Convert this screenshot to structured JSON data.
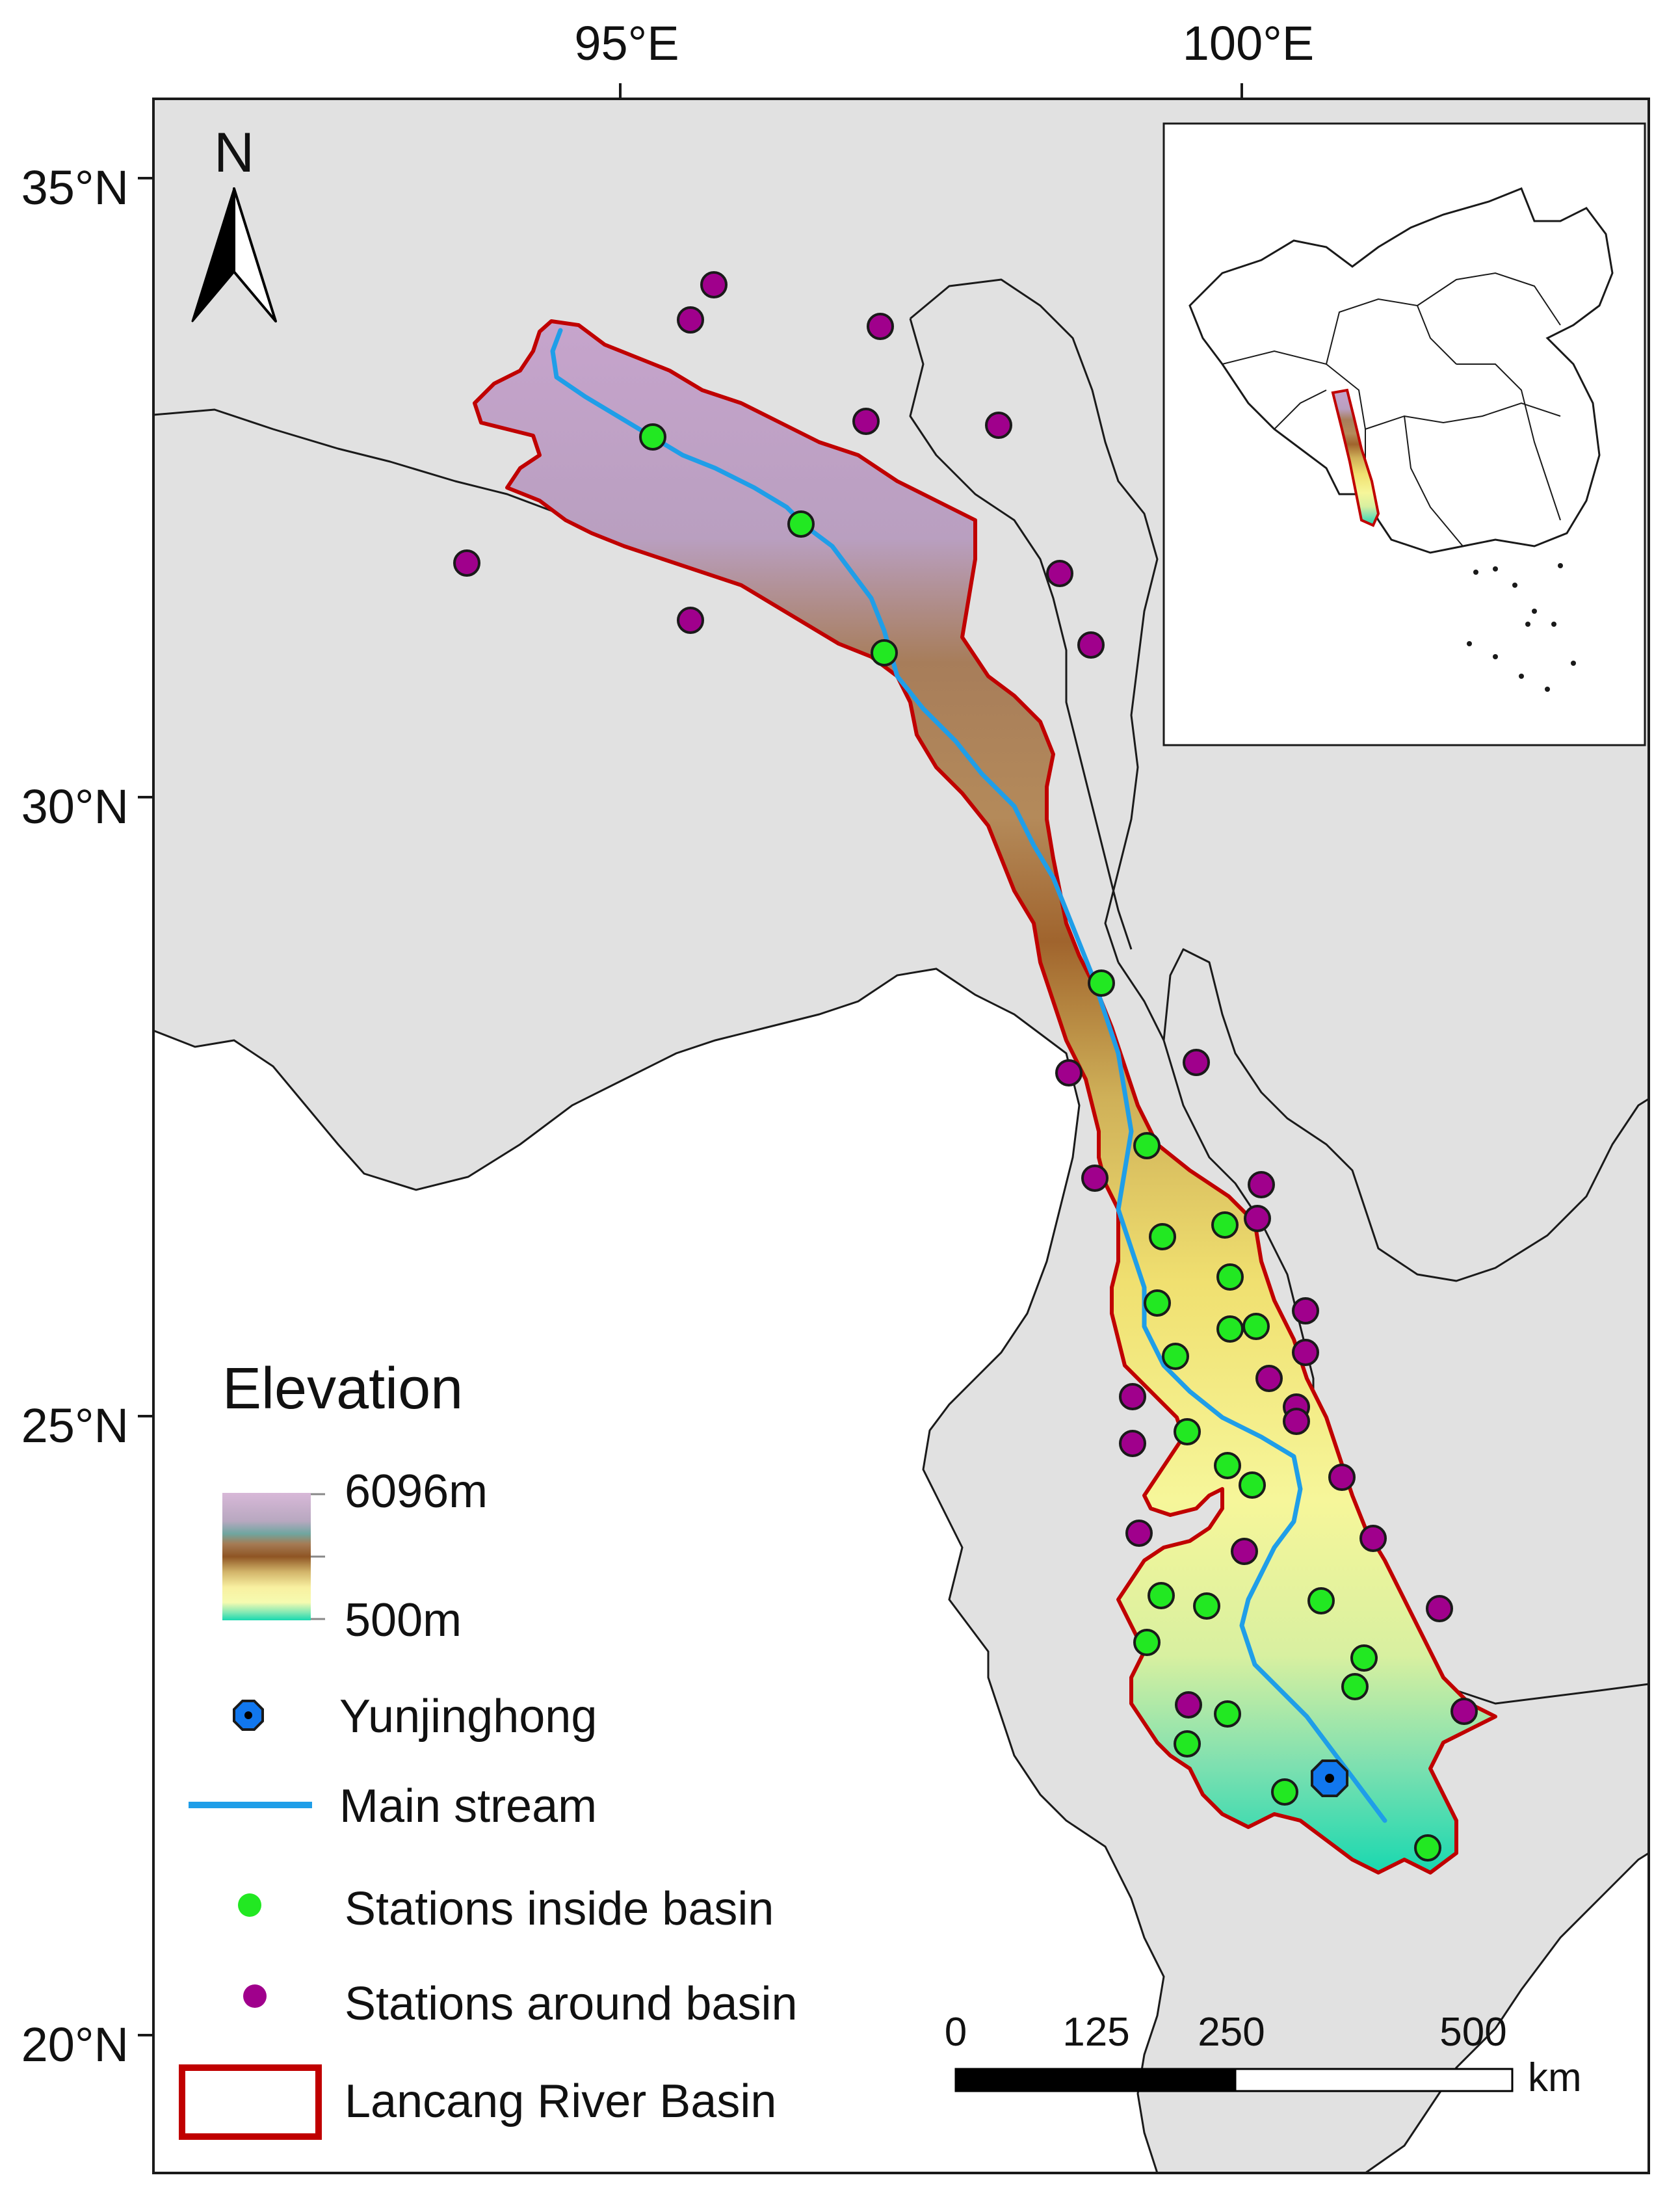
{
  "map": {
    "longitude_labels": [
      "95°E",
      "100°E"
    ],
    "latitude_labels": [
      "35°N",
      "30°N",
      "25°N",
      "20°N"
    ],
    "north_arrow": {
      "label": "N",
      "icon": "north-arrow-icon"
    },
    "colors": {
      "land": "#e1e1e1",
      "border": "#1a1a1a",
      "basin_outline": "#c00000",
      "main_stream": "#1f9ee8",
      "station_inside": "#22e822",
      "station_around": "#a0008c",
      "outlet": "#1177ee",
      "elevation_high": "#c8a0c8",
      "elevation_mid": "#a0642d",
      "elevation_low": "#f2f28a",
      "elevation_min": "#19d8b0"
    }
  },
  "legend": {
    "title": "Elevation",
    "elevation_max": "6096m",
    "elevation_min": "500m",
    "items": [
      {
        "key": "outlet",
        "label": "Yunjinghong",
        "icon": "outlet-station-icon"
      },
      {
        "key": "stream",
        "label": "Main stream",
        "icon": "stream-line-icon"
      },
      {
        "key": "inside",
        "label": "Stations inside basin",
        "icon": "green-dot-icon"
      },
      {
        "key": "around",
        "label": "Stations around basin",
        "icon": "purple-dot-icon"
      },
      {
        "key": "basin",
        "label": "Lancang River Basin",
        "icon": "basin-box-icon"
      }
    ]
  },
  "scale_bar": {
    "ticks": [
      "0",
      "125",
      "250",
      "500"
    ],
    "unit": "km"
  }
}
